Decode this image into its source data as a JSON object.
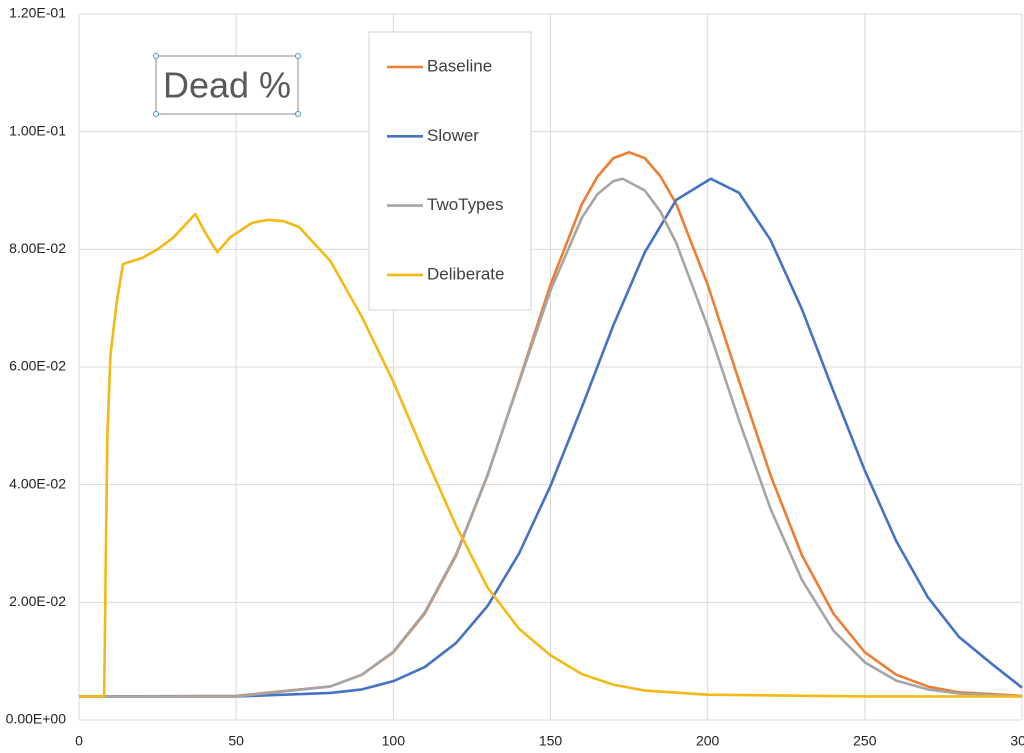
{
  "chart_data": {
    "type": "line",
    "title": "Dead %",
    "xlim": [
      0,
      300
    ],
    "xticks": [
      0,
      50,
      100,
      150,
      200,
      250,
      300
    ],
    "ylim": [
      0,
      0.12
    ],
    "yticks": [
      {
        "value": 0,
        "label": "0.00E+00"
      },
      {
        "value": 0.02,
        "label": "2.00E-02"
      },
      {
        "value": 0.04,
        "label": "4.00E-02"
      },
      {
        "value": 0.06,
        "label": "6.00E-02"
      },
      {
        "value": 0.08,
        "label": "8.00E-02"
      },
      {
        "value": 0.1,
        "label": "1.00E-01"
      },
      {
        "value": 0.12,
        "label": "1.20E-01"
      }
    ],
    "grid": true,
    "legend_position": "upper center",
    "series": [
      {
        "name": "Baseline",
        "color": "#ed7d31",
        "x": [
          0,
          50,
          80,
          90,
          100,
          110,
          120,
          130,
          140,
          150,
          160,
          165,
          170,
          175,
          180,
          185,
          190,
          200,
          210,
          220,
          230,
          240,
          250,
          260,
          270,
          280,
          300
        ],
        "values": [
          0.004,
          0.0041,
          0.0057,
          0.0077,
          0.0115,
          0.0181,
          0.028,
          0.0416,
          0.0576,
          0.074,
          0.0877,
          0.0924,
          0.0955,
          0.0965,
          0.0955,
          0.0924,
          0.0877,
          0.074,
          0.0576,
          0.0416,
          0.028,
          0.0181,
          0.0115,
          0.0077,
          0.0057,
          0.0047,
          0.0041
        ]
      },
      {
        "name": "Slower",
        "color": "#4472c4",
        "x": [
          0,
          50,
          80,
          90,
          100,
          110,
          120,
          130,
          140,
          150,
          160,
          170,
          180,
          190,
          201,
          210,
          220,
          230,
          240,
          250,
          260,
          270,
          280,
          290,
          300
        ],
        "values": [
          0.004,
          0.004,
          0.0046,
          0.0052,
          0.0066,
          0.009,
          0.0131,
          0.0194,
          0.0283,
          0.0398,
          0.0532,
          0.0671,
          0.0795,
          0.0884,
          0.092,
          0.0896,
          0.0816,
          0.0698,
          0.0559,
          0.0424,
          0.0304,
          0.0209,
          0.0141,
          0.0097,
          0.0055
        ]
      },
      {
        "name": "TwoTypes",
        "color": "#a5a5a5",
        "x": [
          0,
          50,
          80,
          90,
          100,
          110,
          120,
          130,
          140,
          150,
          160,
          165,
          170,
          173,
          180,
          185,
          190,
          200,
          210,
          220,
          230,
          240,
          250,
          260,
          270,
          280,
          300
        ],
        "values": [
          0.004,
          0.004,
          0.0057,
          0.0077,
          0.0116,
          0.0183,
          0.0282,
          0.0417,
          0.0574,
          0.073,
          0.0854,
          0.0894,
          0.0916,
          0.092,
          0.09,
          0.0864,
          0.0811,
          0.0669,
          0.0509,
          0.0359,
          0.0238,
          0.0152,
          0.0098,
          0.0067,
          0.0052,
          0.0045,
          0.004
        ]
      },
      {
        "name": "Deliberate",
        "color": "#f5b915",
        "x": [
          0,
          7,
          8,
          9,
          10,
          12,
          14,
          20,
          25,
          30,
          37,
          40,
          44,
          48,
          55,
          60,
          65,
          70,
          80,
          90,
          100,
          110,
          120,
          130,
          140,
          150,
          160,
          170,
          180,
          200,
          250,
          300
        ],
        "values": [
          0.004,
          0.004,
          0.004,
          0.048,
          0.062,
          0.071,
          0.0775,
          0.0785,
          0.08,
          0.082,
          0.086,
          0.083,
          0.0795,
          0.082,
          0.0845,
          0.085,
          0.0848,
          0.0838,
          0.078,
          0.0685,
          0.0575,
          0.045,
          0.033,
          0.0225,
          0.0155,
          0.011,
          0.0078,
          0.006,
          0.005,
          0.0043,
          0.004,
          0.004
        ]
      }
    ]
  }
}
